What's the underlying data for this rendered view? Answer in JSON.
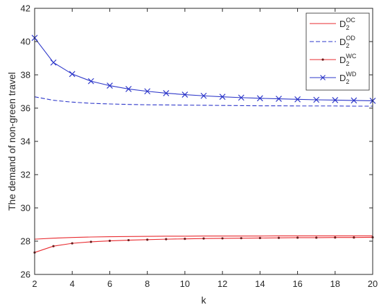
{
  "chart_data": {
    "type": "line",
    "xlabel": "k",
    "ylabel": "The demand of non-green travel",
    "xlim": [
      2,
      20
    ],
    "ylim": [
      26,
      42
    ],
    "xticks": [
      2,
      4,
      6,
      8,
      10,
      12,
      14,
      16,
      18,
      20
    ],
    "yticks": [
      26,
      28,
      30,
      32,
      34,
      36,
      38,
      40,
      42
    ],
    "grid": false,
    "legend_position": "top-right",
    "x": [
      2,
      3,
      4,
      5,
      6,
      7,
      8,
      9,
      10,
      11,
      12,
      13,
      14,
      15,
      16,
      17,
      18,
      19,
      20
    ],
    "series": [
      {
        "name": "D2OC",
        "label_base": "D",
        "label_sub": "2",
        "label_sup": "OC",
        "color": "#e8282d",
        "style": "solid",
        "marker": "none",
        "values": [
          28.12,
          28.18,
          28.22,
          28.25,
          28.27,
          28.28,
          28.29,
          28.3,
          28.3,
          28.31,
          28.31,
          28.31,
          28.31,
          28.32,
          28.32,
          28.32,
          28.32,
          28.32,
          28.32
        ]
      },
      {
        "name": "D2OD",
        "label_base": "D",
        "label_sub": "2",
        "label_sup": "OD",
        "color": "#2b35c9",
        "style": "dashed",
        "marker": "none",
        "values": [
          36.68,
          36.47,
          36.36,
          36.29,
          36.25,
          36.22,
          36.2,
          36.19,
          36.18,
          36.17,
          36.16,
          36.15,
          36.14,
          36.14,
          36.13,
          36.13,
          36.13,
          36.12,
          36.12
        ]
      },
      {
        "name": "D2WC",
        "label_base": "D",
        "label_sub": "2",
        "label_sup": "WC",
        "color": "#e8282d",
        "style": "solid",
        "marker": "dot",
        "values": [
          27.32,
          27.7,
          27.87,
          27.96,
          28.02,
          28.06,
          28.09,
          28.12,
          28.14,
          28.16,
          28.17,
          28.18,
          28.19,
          28.2,
          28.21,
          28.21,
          28.22,
          28.22,
          28.23
        ]
      },
      {
        "name": "D2WD",
        "label_base": "D",
        "label_sub": "2",
        "label_sup": "WD",
        "color": "#2b35c9",
        "style": "solid",
        "marker": "x",
        "values": [
          40.22,
          38.74,
          38.05,
          37.62,
          37.35,
          37.15,
          37.01,
          36.9,
          36.81,
          36.74,
          36.68,
          36.63,
          36.59,
          36.56,
          36.53,
          36.5,
          36.48,
          36.46,
          36.44
        ]
      }
    ]
  }
}
